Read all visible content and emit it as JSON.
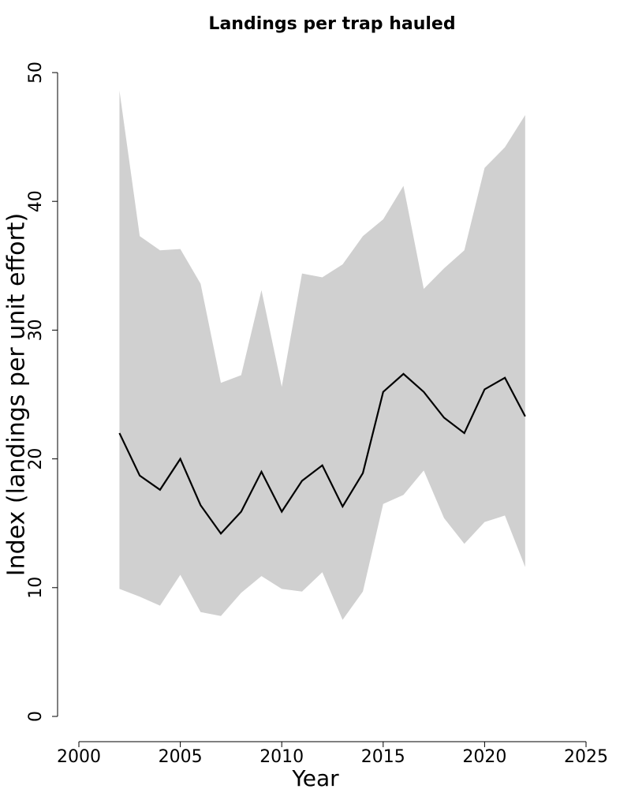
{
  "chart_data": {
    "type": "line",
    "title": "Landings per trap hauled",
    "x_label": "Year",
    "y_label": "Index  (landings per unit effort)",
    "x": [
      2002,
      2003,
      2004,
      2005,
      2006,
      2007,
      2008,
      2009,
      2010,
      2011,
      2012,
      2013,
      2014,
      2015,
      2016,
      2017,
      2018,
      2019,
      2020,
      2021,
      2022
    ],
    "values": [
      22.0,
      18.7,
      17.6,
      20.0,
      16.4,
      14.2,
      15.9,
      19.0,
      15.9,
      18.3,
      19.5,
      16.3,
      18.9,
      25.2,
      26.6,
      25.2,
      23.2,
      22.0,
      25.4,
      26.3,
      23.3
    ],
    "upper": [
      48.6,
      37.3,
      36.2,
      36.3,
      33.6,
      25.9,
      26.5,
      33.1,
      25.6,
      34.4,
      34.1,
      35.1,
      37.3,
      38.6,
      41.2,
      33.2,
      34.8,
      36.2,
      42.6,
      44.2,
      46.7
    ],
    "lower": [
      9.9,
      9.3,
      8.6,
      11.0,
      8.1,
      7.8,
      9.6,
      10.9,
      9.9,
      9.7,
      11.2,
      7.5,
      9.7,
      16.5,
      17.2,
      19.1,
      15.4,
      13.4,
      15.1,
      15.6,
      11.6
    ],
    "color": "#000000",
    "band_color": "#d0d0d0",
    "xlim": [
      2000,
      2025
    ],
    "xticks": [
      2000,
      2005,
      2010,
      2015,
      2020,
      2025
    ],
    "ylim": [
      0,
      50
    ],
    "yticks": [
      0,
      10,
      20,
      30,
      40,
      50
    ]
  }
}
